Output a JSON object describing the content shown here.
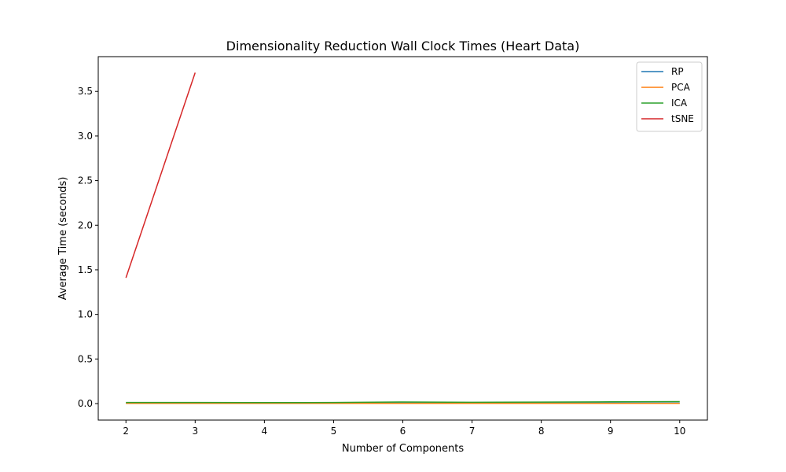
{
  "chart_data": {
    "type": "line",
    "title": "Dimensionality Reduction Wall Clock Times (Heart Data)",
    "xlabel": "Number of Components",
    "ylabel": "Average Time (seconds)",
    "xlim": [
      1.6,
      10.4
    ],
    "ylim": [
      -0.185,
      3.89
    ],
    "xticks": [
      2,
      3,
      4,
      5,
      6,
      7,
      8,
      9,
      10
    ],
    "yticks": [
      0.0,
      0.5,
      1.0,
      1.5,
      2.0,
      2.5,
      3.0,
      3.5
    ],
    "ytick_labels": [
      "0.0",
      "0.5",
      "1.0",
      "1.5",
      "2.0",
      "2.5",
      "3.0",
      "3.5"
    ],
    "grid": false,
    "legend_position": "top-right",
    "series": [
      {
        "name": "RP",
        "color": "#1f77b4",
        "x": [
          2,
          3,
          4,
          5,
          6,
          7,
          8,
          9,
          10
        ],
        "y": [
          0.006,
          0.006,
          0.006,
          0.006,
          0.006,
          0.006,
          0.006,
          0.006,
          0.006
        ]
      },
      {
        "name": "PCA",
        "color": "#ff7f0e",
        "x": [
          2,
          3,
          4,
          5,
          6,
          7,
          8,
          9,
          10
        ],
        "y": [
          0.003,
          0.003,
          0.003,
          0.003,
          0.003,
          0.003,
          0.003,
          0.003,
          0.003
        ]
      },
      {
        "name": "ICA",
        "color": "#2ca02c",
        "x": [
          2,
          3,
          4,
          5,
          6,
          7,
          8,
          9,
          10
        ],
        "y": [
          0.012,
          0.012,
          0.011,
          0.012,
          0.018,
          0.015,
          0.017,
          0.02,
          0.022
        ]
      },
      {
        "name": "tSNE",
        "color": "#d62728",
        "x": [
          2,
          3
        ],
        "y": [
          1.41,
          3.71
        ]
      }
    ]
  }
}
